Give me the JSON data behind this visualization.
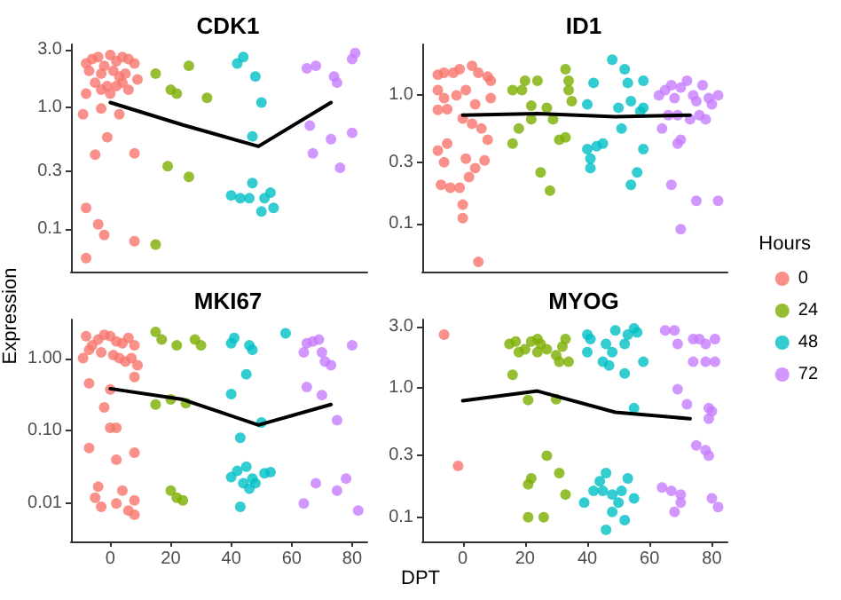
{
  "chart_data": [
    {
      "type": "scatter",
      "title": "CDK1",
      "log": true,
      "grid": false,
      "marker": "circle",
      "tick_labels": "y",
      "xlim": [
        -13,
        85
      ],
      "xticks": [
        0,
        20,
        40,
        60,
        80
      ],
      "ylim": [
        0.045,
        3.3
      ],
      "yticks": [
        0.1,
        0.3,
        {
          "value": 1,
          "label": "1.0"
        },
        {
          "value": 3,
          "label": "3.0"
        }
      ],
      "series": [
        {
          "color": "#f8766d",
          "x": [
            -8,
            -6,
            -4,
            -2,
            0,
            2,
            4,
            6,
            8,
            -7,
            -3,
            1,
            3,
            5,
            9,
            -5,
            -1,
            2,
            4,
            -8,
            -3,
            0,
            6,
            -9,
            -3,
            3,
            -1,
            -5,
            8,
            -8,
            -4,
            -2,
            8,
            -8
          ],
          "values": [
            2.3,
            2.5,
            2.6,
            2.2,
            2.7,
            2.4,
            2.6,
            2.5,
            2.3,
            2.0,
            1.9,
            2.0,
            1.8,
            1.9,
            1.7,
            1.6,
            1.5,
            1.5,
            1.6,
            1.3,
            1.4,
            1.3,
            1.4,
            0.88,
            0.98,
            0.88,
            0.57,
            0.41,
            0.42,
            0.15,
            0.11,
            0.09,
            0.08,
            0.058
          ]
        },
        {
          "color": "#7cae00",
          "x": [
            15,
            20,
            22,
            26,
            32,
            19,
            26,
            15
          ],
          "values": [
            1.9,
            1.4,
            1.3,
            2.2,
            1.2,
            0.33,
            0.27,
            0.075
          ]
        },
        {
          "color": "#00bfc4",
          "x": [
            42,
            44,
            48,
            50,
            47,
            40,
            43,
            46,
            47,
            51,
            53,
            54,
            50
          ],
          "values": [
            2.3,
            2.6,
            1.8,
            1.1,
            0.58,
            0.19,
            0.18,
            0.18,
            0.24,
            0.18,
            0.2,
            0.15,
            0.14
          ]
        },
        {
          "color": "#c77cff",
          "x": [
            65,
            68,
            74,
            75,
            80,
            81,
            66,
            67,
            73,
            80,
            76
          ],
          "values": [
            2.1,
            2.2,
            1.8,
            1.6,
            2.5,
            2.8,
            0.71,
            0.42,
            0.55,
            0.62,
            0.32
          ]
        },
        {
          "type": "line",
          "color": "#000000",
          "marker": "none",
          "x": [
            0,
            24,
            49,
            73
          ],
          "values": [
            1.1,
            0.72,
            0.48,
            1.1
          ]
        }
      ]
    },
    {
      "type": "scatter",
      "title": "ID1",
      "log": true,
      "grid": false,
      "marker": "circle",
      "tick_labels": "y",
      "xlim": [
        -13,
        85
      ],
      "xticks": [
        0,
        20,
        40,
        60,
        80
      ],
      "ylim": [
        0.042,
        2.5
      ],
      "yticks": [
        0.1,
        0.3,
        {
          "value": 1,
          "label": "1.0"
        }
      ],
      "series": [
        {
          "color": "#f8766d",
          "x": [
            -8,
            -6,
            -3,
            -1,
            3,
            5,
            8,
            9,
            -8,
            -6,
            -8,
            -5,
            -2,
            1,
            4,
            9,
            0,
            3,
            6,
            8,
            -8,
            -5,
            -6,
            1,
            4,
            -7,
            -4,
            -1,
            0,
            0,
            5,
            2,
            7
          ],
          "values": [
            1.45,
            1.5,
            1.5,
            1.6,
            1.7,
            1.5,
            1.4,
            1.3,
            1.1,
            0.95,
            0.77,
            0.78,
            1.0,
            1.1,
            0.85,
            0.95,
            0.66,
            0.6,
            0.55,
            0.45,
            0.37,
            0.42,
            0.3,
            0.32,
            0.27,
            0.2,
            0.19,
            0.19,
            0.14,
            0.11,
            0.05,
            0.23,
            0.31
          ]
        },
        {
          "color": "#7cae00",
          "x": [
            16,
            19,
            20,
            24,
            22,
            18,
            16,
            22,
            25,
            27,
            28,
            29,
            33,
            34,
            34,
            35,
            31,
            33
          ],
          "values": [
            1.1,
            1.1,
            1.3,
            1.3,
            0.83,
            0.55,
            0.42,
            0.65,
            0.25,
            0.8,
            0.18,
            0.65,
            1.6,
            1.3,
            1.1,
            0.9,
            0.45,
            0.47
          ]
        },
        {
          "color": "#00bfc4",
          "x": [
            40,
            42,
            43,
            40,
            41,
            41,
            45,
            48,
            52,
            50,
            53,
            54,
            51,
            54,
            56,
            58,
            58,
            57,
            58
          ],
          "values": [
            0.85,
            1.25,
            0.4,
            0.38,
            0.32,
            0.27,
            0.42,
            1.9,
            1.6,
            0.8,
            1.25,
            0.9,
            0.55,
            0.2,
            0.25,
            1.3,
            0.8,
            0.75,
            0.38
          ]
        },
        {
          "color": "#c77cff",
          "x": [
            63,
            65,
            67,
            68,
            70,
            72,
            74,
            75,
            77,
            79,
            80,
            82,
            66,
            69,
            73,
            76,
            78,
            64,
            70,
            69,
            67,
            75,
            82,
            70
          ],
          "values": [
            1.0,
            1.1,
            1.2,
            0.95,
            1.15,
            1.3,
            1.0,
            0.9,
            1.2,
            0.95,
            0.85,
            1.0,
            0.7,
            0.7,
            0.65,
            0.7,
            0.65,
            0.55,
            0.45,
            0.42,
            0.2,
            0.15,
            0.15,
            0.09
          ]
        },
        {
          "type": "line",
          "color": "#000000",
          "marker": "none",
          "x": [
            0,
            24,
            49,
            73
          ],
          "values": [
            0.7,
            0.72,
            0.68,
            0.7
          ]
        }
      ]
    },
    {
      "type": "scatter",
      "title": "MKI67",
      "ylabel": "Expression",
      "log": true,
      "grid": false,
      "marker": "circle",
      "xlim": [
        -13,
        85
      ],
      "xticks": [
        0,
        20,
        40,
        60,
        80
      ],
      "ylim": [
        0.003,
        3.4
      ],
      "yticks": [
        0.01,
        {
          "value": 0.1,
          "label": "0.10"
        },
        {
          "value": 1,
          "label": "1.00"
        }
      ],
      "series": [
        {
          "color": "#f8766d",
          "x": [
            -8,
            -6,
            -4,
            -2,
            0,
            2,
            4,
            6,
            8,
            -9,
            -7,
            -3,
            1,
            3,
            5,
            7,
            9,
            8,
            -7,
            0,
            -2,
            0,
            2,
            -7,
            2,
            8,
            -4,
            -5,
            -3,
            2,
            4,
            6,
            8,
            8
          ],
          "values": [
            2.0,
            1.5,
            1.8,
            2.1,
            2.0,
            1.7,
            1.6,
            1.9,
            1.5,
            1.0,
            1.3,
            1.2,
            1.1,
            1.0,
            0.9,
            1.0,
            0.8,
            0.55,
            0.45,
            0.37,
            0.21,
            0.11,
            0.11,
            0.058,
            0.04,
            0.05,
            0.017,
            0.012,
            0.009,
            0.01,
            0.015,
            0.008,
            0.011,
            0.007
          ]
        },
        {
          "color": "#7cae00",
          "x": [
            15,
            17,
            22,
            28,
            30,
            15,
            20,
            25,
            20,
            22,
            24
          ],
          "values": [
            2.3,
            1.8,
            1.5,
            1.8,
            1.5,
            0.23,
            0.27,
            0.24,
            0.015,
            0.012,
            0.011
          ]
        },
        {
          "color": "#00bfc4",
          "x": [
            40,
            41,
            46,
            47,
            58,
            45,
            40,
            50,
            43,
            40,
            42,
            45,
            47,
            48,
            51,
            53,
            44,
            46,
            43
          ],
          "values": [
            1.6,
            1.9,
            1.5,
            1.3,
            2.2,
            0.6,
            0.32,
            0.13,
            0.08,
            0.023,
            0.028,
            0.032,
            0.022,
            0.019,
            0.026,
            0.027,
            0.019,
            0.016,
            0.009
          ]
        },
        {
          "color": "#c77cff",
          "x": [
            65,
            67,
            69,
            70,
            71,
            73,
            64,
            80,
            65,
            70,
            75,
            64,
            68,
            75,
            78,
            82
          ],
          "values": [
            1.6,
            1.7,
            1.8,
            1.2,
            0.9,
            0.8,
            1.2,
            1.5,
            0.4,
            0.31,
            0.14,
            0.01,
            0.019,
            0.015,
            0.022,
            0.008
          ]
        },
        {
          "type": "line",
          "color": "#000000",
          "marker": "none",
          "x": [
            0,
            24,
            49,
            73
          ],
          "values": [
            0.38,
            0.27,
            0.12,
            0.23
          ]
        }
      ]
    },
    {
      "type": "scatter",
      "title": "MYOG",
      "xlabel": "DPT",
      "legend_title": "Hours",
      "legend": "right",
      "log": true,
      "grid": false,
      "marker": "circle",
      "xlim": [
        -13,
        85
      ],
      "xticks": [
        0,
        20,
        40,
        60,
        80
      ],
      "ylim": [
        0.065,
        3.4
      ],
      "yticks": [
        0.1,
        0.3,
        {
          "value": 1,
          "label": "1.0"
        },
        {
          "value": 3,
          "label": "3.0"
        }
      ],
      "series": [
        {
          "name": "0",
          "color": "#f8766d",
          "x": [
            -6,
            -1.5
          ],
          "values": [
            2.6,
            0.25
          ]
        },
        {
          "name": "24",
          "color": "#7cae00",
          "x": [
            15,
            17,
            18,
            20,
            22,
            24,
            25,
            27,
            30,
            32,
            33,
            34,
            31,
            24,
            16,
            21,
            30,
            27,
            31,
            22,
            21,
            33,
            21,
            26
          ],
          "values": [
            2.2,
            2.3,
            1.9,
            2.0,
            2.3,
            2.4,
            2.2,
            2.0,
            1.8,
            2.1,
            2.4,
            1.6,
            1.6,
            1.9,
            1.27,
            0.81,
            0.82,
            0.3,
            0.22,
            0.2,
            0.18,
            0.15,
            0.1,
            0.1
          ]
        },
        {
          "name": "48",
          "color": "#00bfc4",
          "x": [
            40,
            41,
            46,
            49,
            52,
            53,
            55,
            56,
            40,
            45,
            47,
            48,
            52,
            58,
            55,
            39,
            42,
            44,
            46,
            45,
            48,
            50,
            51,
            53,
            55,
            48,
            52,
            46
          ],
          "values": [
            2.6,
            2.4,
            2.2,
            2.8,
            2.2,
            2.6,
            2.9,
            2.7,
            1.9,
            1.6,
            1.5,
            1.9,
            1.3,
            1.6,
            0.7,
            0.13,
            0.16,
            0.19,
            0.22,
            0.16,
            0.15,
            0.13,
            0.16,
            0.2,
            0.14,
            0.11,
            0.095,
            0.08
          ]
        },
        {
          "name": "72",
          "color": "#c77cff",
          "x": [
            65,
            68,
            69,
            74,
            76,
            78,
            81,
            74,
            78,
            81,
            69,
            72,
            79,
            80,
            79,
            75,
            78,
            79,
            64,
            67,
            70,
            70,
            68,
            80,
            82
          ],
          "values": [
            2.8,
            2.8,
            2.2,
            2.4,
            2.4,
            2.2,
            2.4,
            1.6,
            1.6,
            1.6,
            0.98,
            0.75,
            0.7,
            0.66,
            0.58,
            0.36,
            0.33,
            0.3,
            0.17,
            0.16,
            0.15,
            0.13,
            0.11,
            0.14,
            0.12
          ]
        },
        {
          "type": "line",
          "color": "#000000",
          "marker": "none",
          "x": [
            0,
            24,
            49,
            73
          ],
          "values": [
            0.8,
            0.95,
            0.65,
            0.58
          ]
        }
      ]
    }
  ]
}
